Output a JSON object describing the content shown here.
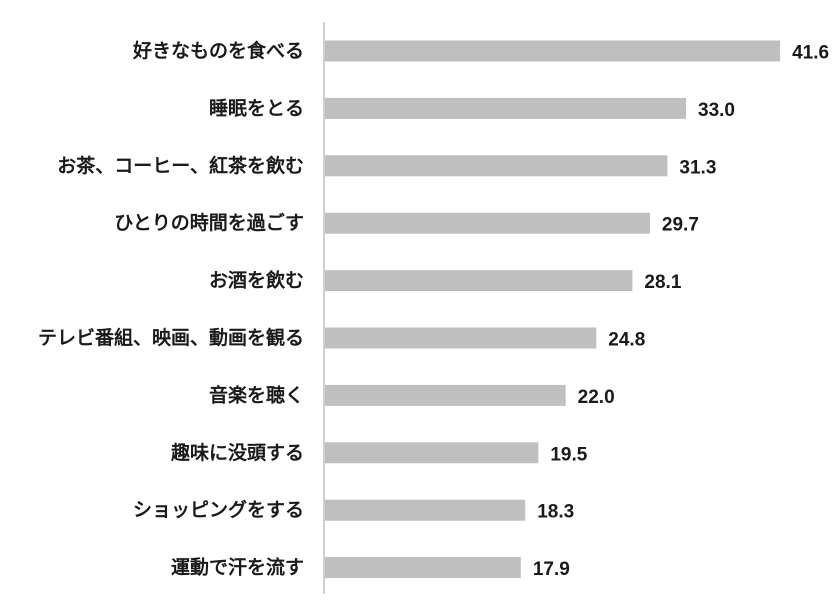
{
  "chart_data": {
    "type": "bar",
    "orientation": "horizontal",
    "categories": [
      "好きなものを食べる",
      "睡眠をとる",
      "お茶、コーヒー、紅茶を飲む",
      "ひとりの時間を過ごす",
      "お酒を飲む",
      "テレビ番組、映画、動画を観る",
      "音楽を聴く",
      "趣味に没頭する",
      "ショッピングをする",
      "運動で汗を流す"
    ],
    "values": [
      41.6,
      33.0,
      31.3,
      29.7,
      28.1,
      24.8,
      22.0,
      19.5,
      18.3,
      17.9
    ],
    "value_labels": [
      "41.6",
      "33.0",
      "31.3",
      "29.7",
      "28.1",
      "24.8",
      "22.0",
      "19.5",
      "18.3",
      "17.9"
    ],
    "xlim": [
      0,
      45
    ],
    "grid": false,
    "legend": "none",
    "colors": {
      "bar": "#bfbfbf",
      "axis": "#bfbfbf",
      "text": "#1a1a1a"
    }
  }
}
